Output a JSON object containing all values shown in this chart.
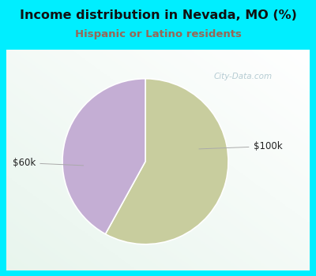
{
  "title": "Income distribution in Nevada, MO (%)",
  "subtitle": "Hispanic or Latino residents",
  "title_color": "#111111",
  "subtitle_color": "#996655",
  "background_color": "#00eeff",
  "chart_bg_gradient_top_left": "#e8f5ee",
  "chart_bg_gradient_bottom_right": "#f8fcf8",
  "slices": [
    {
      "label": "$60k",
      "value": 58,
      "color": "#c8cd9e"
    },
    {
      "label": "$100k",
      "value": 42,
      "color": "#c4aed4"
    }
  ],
  "label_color": "#222222",
  "watermark": "City-Data.com",
  "watermark_color": "#aac4cc"
}
